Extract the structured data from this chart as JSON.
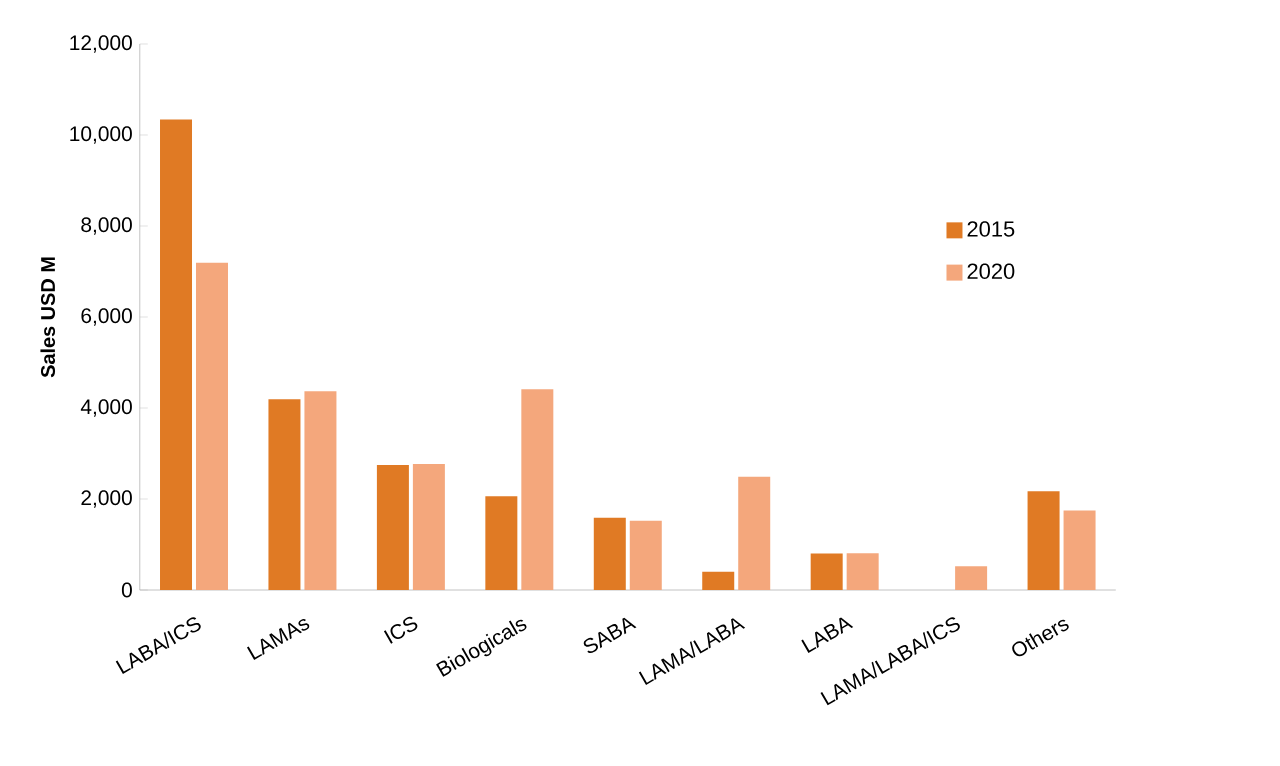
{
  "chart_data": {
    "type": "bar",
    "ylabel": "Sales USD M",
    "categories": [
      "LABA/ICS",
      "LAMAs",
      "ICS",
      "Biologicals",
      "SABA",
      "LAMA/LABA",
      "LABA",
      "LAMA/LABA/ICS",
      "Others"
    ],
    "series": [
      {
        "name": "2015",
        "color": "#e07a24",
        "values": [
          10340,
          4190,
          2750,
          2060,
          1590,
          400,
          800,
          0,
          2170
        ]
      },
      {
        "name": "2020",
        "color": "#f4a77c",
        "values": [
          7190,
          4370,
          2770,
          4410,
          1520,
          2490,
          810,
          520,
          1750
        ]
      }
    ],
    "ylim": [
      0,
      12000
    ],
    "yticks": [
      {
        "value": 0,
        "label": "0"
      },
      {
        "value": 2000,
        "label": "2,000"
      },
      {
        "value": 4000,
        "label": "4,000"
      },
      {
        "value": 6000,
        "label": "6,000"
      },
      {
        "value": 8000,
        "label": "8,000"
      },
      {
        "value": 10000,
        "label": "10,000"
      },
      {
        "value": 12000,
        "label": "12,000"
      }
    ],
    "grid": false,
    "legend": "right"
  }
}
